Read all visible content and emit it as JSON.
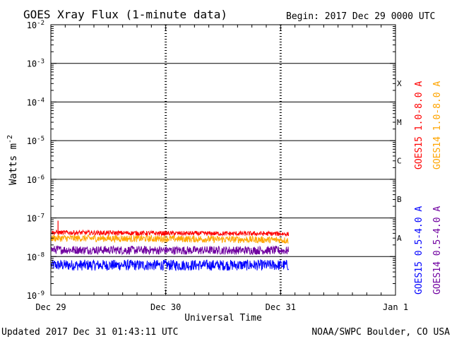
{
  "chart_data": {
    "type": "line",
    "title": "GOES Xray Flux (1-minute data)",
    "begin_text": "Begin:  2017 Dec 29 0000 UTC",
    "ylabel_main": "Watts m",
    "ylabel_sup": "-2",
    "xlabel": "Universal Time",
    "x_ticks": [
      "Dec 29",
      "Dec 30",
      "Dec 31",
      "Jan 1"
    ],
    "xlim": [
      "2017-12-29T00:00",
      "2018-01-01T00:00"
    ],
    "y_scale": "log",
    "ylim": [
      1e-09,
      0.01
    ],
    "y_ticks": [
      {
        "base": "10",
        "exp": "-2",
        "value": 0.01
      },
      {
        "base": "10",
        "exp": "-3",
        "value": 0.001
      },
      {
        "base": "10",
        "exp": "-4",
        "value": 0.0001
      },
      {
        "base": "10",
        "exp": "-5",
        "value": 1e-05
      },
      {
        "base": "10",
        "exp": "-6",
        "value": 1e-06
      },
      {
        "base": "10",
        "exp": "-7",
        "value": 1e-07
      },
      {
        "base": "10",
        "exp": "-8",
        "value": 1e-08
      },
      {
        "base": "10",
        "exp": "-9",
        "value": 1e-09
      }
    ],
    "flare_classes": [
      {
        "label": "X",
        "value": 0.0001
      },
      {
        "label": "M",
        "value": 1e-05
      },
      {
        "label": "C",
        "value": 1e-06
      },
      {
        "label": "B",
        "value": 1e-07
      },
      {
        "label": "A",
        "value": 1e-08
      }
    ],
    "grid_horizontal": true,
    "legend_placement": "right",
    "series": [
      {
        "name": "GOES15 1.0-8.0 A",
        "color": "#ff0000",
        "values": [
          4.2e-08,
          4e-08,
          3.9e-08,
          3.8e-08
        ]
      },
      {
        "name": "GOES14 1.0-8.0 A",
        "color": "#ffa500",
        "values": [
          3e-08,
          2.9e-08,
          2.7e-08,
          2.6e-08
        ]
      },
      {
        "name": "GOES15 0.5-4.0 A",
        "color": "#0000ff",
        "values": [
          6e-09,
          6e-09,
          6e-09,
          6e-09
        ]
      },
      {
        "name": "GOES14 0.5-4.0 A",
        "color": "#7000a0",
        "values": [
          1.5e-08,
          1.45e-08,
          1.45e-08,
          1.4e-08
        ]
      }
    ],
    "series_x": [
      "2017-12-29T00:00",
      "2017-12-30T00:00",
      "2017-12-31T00:00",
      "2017-12-31T01:43"
    ],
    "spike": {
      "time": "2017-12-29T01:30",
      "value": 8.5e-08
    }
  },
  "footer": {
    "updated": "Updated 2017 Dec 31 01:43:11 UTC",
    "credit": "NOAA/SWPC Boulder, CO USA"
  }
}
